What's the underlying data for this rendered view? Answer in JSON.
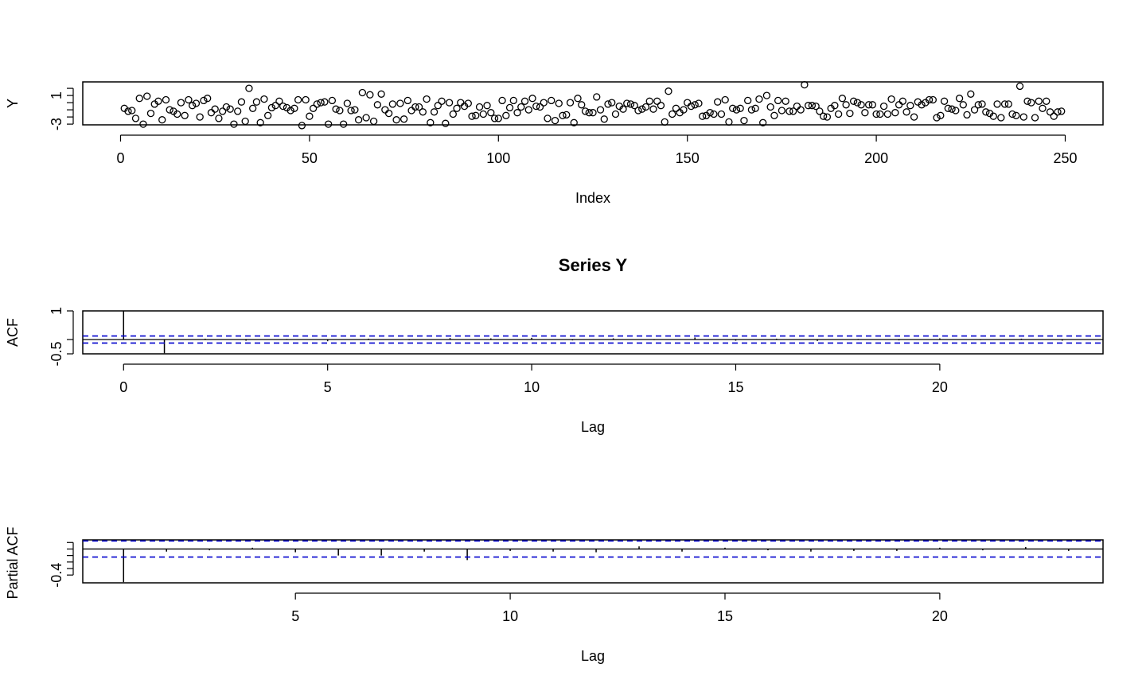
{
  "chart_data": [
    {
      "type": "scatter",
      "title": "",
      "xlabel": "Index",
      "ylabel": "Y",
      "xlim": [
        -10,
        260
      ],
      "ylim": [
        -3.1,
        2.9
      ],
      "x_ticks": [
        0,
        50,
        100,
        150,
        200,
        250
      ],
      "y_ticks": [
        -3,
        1
      ],
      "y": [
        -0.8,
        -1.2,
        -1.1,
        -2.2,
        0.6,
        -3.0,
        0.9,
        -1.5,
        -0.2,
        0.2,
        -2.4,
        0.4,
        -1.0,
        -1.2,
        -1.6,
        0.0,
        -1.8,
        0.4,
        -0.4,
        -0.1,
        -2.0,
        0.3,
        0.6,
        -1.4,
        -0.9,
        -2.2,
        -1.2,
        -0.6,
        -0.9,
        -3.0,
        -1.2,
        0.1,
        -2.6,
        2.0,
        -0.8,
        0.1,
        -2.8,
        0.5,
        -1.8,
        -0.7,
        -0.4,
        0.2,
        -0.5,
        -0.7,
        -1.1,
        -0.8,
        0.4,
        -3.2,
        0.4,
        -1.9,
        -0.8,
        -0.2,
        0.0,
        0.1,
        -3.0,
        0.3,
        -0.9,
        -1.1,
        -3.0,
        -0.1,
        -1.1,
        -1.0,
        -2.4,
        1.4,
        -2.1,
        1.1,
        -2.6,
        -0.3,
        1.2,
        -1.0,
        -1.5,
        -0.2,
        -2.4,
        -0.1,
        -2.3,
        0.3,
        -1.1,
        -0.6,
        -0.6,
        -1.3,
        0.5,
        -2.8,
        -1.3,
        -0.4,
        0.2,
        -2.9,
        0.0,
        -1.6,
        -0.8,
        0.0,
        -0.5,
        -0.1,
        -1.9,
        -1.8,
        -0.6,
        -1.6,
        -0.4,
        -1.4,
        -2.2,
        -2.2,
        0.3,
        -1.8,
        -0.7,
        0.3,
        -1.4,
        -0.6,
        0.2,
        -1.0,
        0.6,
        -0.5,
        -0.6,
        0.0,
        -2.2,
        0.3,
        -2.5,
        -0.1,
        -1.8,
        -1.7,
        0.0,
        -2.8,
        0.6,
        -0.3,
        -1.2,
        -1.4,
        -1.4,
        0.8,
        -1.0,
        -2.3,
        -0.2,
        0.0,
        -1.6,
        -0.5,
        -0.9,
        -0.1,
        -0.2,
        -0.4,
        -1.1,
        -0.9,
        -0.6,
        0.2,
        -0.9,
        0.2,
        -0.4,
        -2.7,
        1.6,
        -1.6,
        -0.8,
        -1.4,
        -1.0,
        0.0,
        -0.5,
        -0.3,
        -0.1,
        -1.9,
        -1.8,
        -1.4,
        -1.6,
        0.1,
        -1.6,
        0.4,
        -2.7,
        -0.8,
        -1.0,
        -0.8,
        -2.5,
        0.3,
        -1.0,
        -0.8,
        0.5,
        -2.8,
        1.0,
        -0.6,
        -1.8,
        0.3,
        -1.1,
        0.2,
        -1.2,
        -1.2,
        -0.5,
        -1.0,
        2.5,
        -0.4,
        -0.4,
        -0.5,
        -1.2,
        -1.9,
        -2.0,
        -0.8,
        -0.4,
        -1.6,
        0.6,
        -0.3,
        -1.5,
        0.2,
        0.0,
        -0.3,
        -1.4,
        -0.3,
        -0.3,
        -1.6,
        -1.6,
        -0.5,
        -1.6,
        0.5,
        -1.4,
        -0.3,
        0.2,
        -1.3,
        -0.4,
        -2.0,
        0.1,
        -0.3,
        0.0,
        0.4,
        0.4,
        -2.1,
        -1.8,
        0.2,
        -0.8,
        -0.9,
        -1.1,
        0.6,
        -0.3,
        -1.7,
        1.2,
        -1.0,
        -0.3,
        -0.2,
        -1.3,
        -1.5,
        -1.9,
        -0.2,
        -2.1,
        -0.2,
        -0.2,
        -1.6,
        -1.8,
        2.3,
        -2.0,
        0.2,
        0.0,
        -2.1,
        0.2,
        -0.8,
        0.2,
        -1.3,
        -1.9,
        -1.3,
        -1.2
      ],
      "point_marker": "open-circle",
      "color": "#000000"
    },
    {
      "type": "bar",
      "title": "Series  Y",
      "xlabel": "Lag",
      "ylabel": "ACF",
      "xlim": [
        -1,
        24
      ],
      "ylim": [
        -0.5,
        1.0
      ],
      "x_ticks": [
        0,
        5,
        10,
        15,
        20
      ],
      "y_ticks": [
        -0.5,
        1.0
      ],
      "lags": [
        0,
        1,
        2,
        3,
        4,
        5,
        6,
        7,
        8,
        9,
        10,
        11,
        12,
        13,
        14,
        15,
        16,
        17,
        18,
        19,
        20,
        21,
        22,
        23
      ],
      "values": [
        1.0,
        -0.48,
        0.03,
        -0.04,
        0.02,
        -0.06,
        0.03,
        -0.02,
        0.05,
        0.04,
        0.06,
        -0.03,
        0.04,
        -0.02,
        0.07,
        -0.04,
        0.03,
        -0.05,
        0.02,
        -0.03,
        0.04,
        -0.02,
        0.03,
        -0.04
      ],
      "ci_level": 0.124,
      "ci_color": "#0000CD",
      "ci_linestyle": "dashed"
    },
    {
      "type": "bar",
      "title": "",
      "xlabel": "Lag",
      "ylabel": "Partial ACF",
      "xlim": [
        0.05,
        23.8
      ],
      "ylim": [
        -0.52,
        0.14
      ],
      "x_ticks": [
        5,
        10,
        15,
        20
      ],
      "y_ticks": [
        -0.4
      ],
      "y_minor_ticks": [
        -0.3,
        -0.2,
        -0.1,
        0.0,
        0.1
      ],
      "lags": [
        1,
        2,
        3,
        4,
        5,
        6,
        7,
        8,
        9,
        10,
        11,
        12,
        13,
        14,
        15,
        16,
        17,
        18,
        19,
        20,
        21,
        22,
        23
      ],
      "values": [
        -0.51,
        -0.04,
        -0.02,
        0.02,
        -0.05,
        -0.1,
        -0.1,
        -0.04,
        -0.17,
        -0.03,
        -0.04,
        -0.05,
        0.04,
        -0.04,
        0.02,
        -0.02,
        -0.04,
        -0.03,
        -0.03,
        0.02,
        -0.02,
        0.03,
        -0.03
      ],
      "ci_level": 0.124,
      "ci_color": "#0000CD",
      "ci_linestyle": "dashed"
    }
  ]
}
